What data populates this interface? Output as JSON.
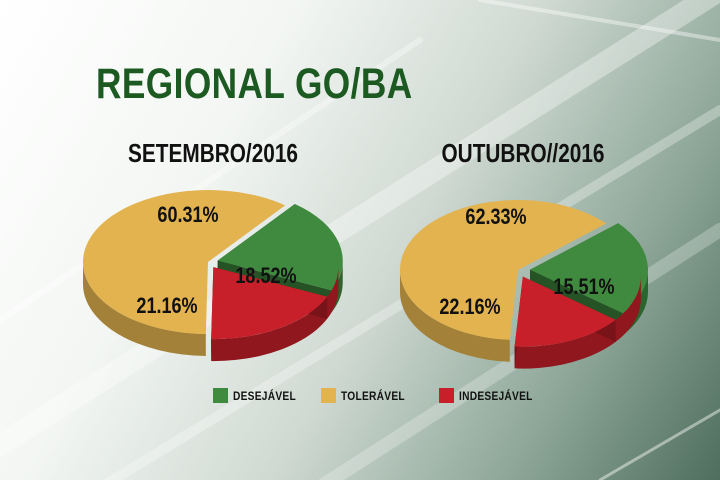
{
  "title": "REGIONAL GO/BA",
  "colors": {
    "desejavel": "#3f8a3e",
    "toleravel": "#e2b34f",
    "indesejavel": "#c8202a",
    "title": "#1c5a22"
  },
  "legend": [
    {
      "label": "DESEJÁVEL",
      "color": "#3f8a3e"
    },
    {
      "label": "TOLERÁVEL",
      "color": "#e2b34f"
    },
    {
      "label": "INDESEJÁVEL",
      "color": "#c8202a"
    }
  ],
  "chart_data": [
    {
      "type": "pie",
      "title": "SETEMBRO/2016",
      "slices": [
        {
          "category": "TOLERÁVEL",
          "value": 60.31,
          "label": "60.31%",
          "color": "#e2b34f"
        },
        {
          "category": "DESEJÁVEL",
          "value": 21.16,
          "label": "21.16%",
          "color": "#3f8a3e"
        },
        {
          "category": "INDESEJÁVEL",
          "value": 18.52,
          "label": "18.52%",
          "color": "#c8202a"
        }
      ]
    },
    {
      "type": "pie",
      "title": "OUTUBRO//2016",
      "slices": [
        {
          "category": "TOLERÁVEL",
          "value": 62.33,
          "label": "62.33%",
          "color": "#e2b34f"
        },
        {
          "category": "DESEJÁVEL",
          "value": 22.16,
          "label": "22.16%",
          "color": "#3f8a3e"
        },
        {
          "category": "INDESEJÁVEL",
          "value": 15.51,
          "label": "15.51%",
          "color": "#c8202a"
        }
      ]
    }
  ]
}
